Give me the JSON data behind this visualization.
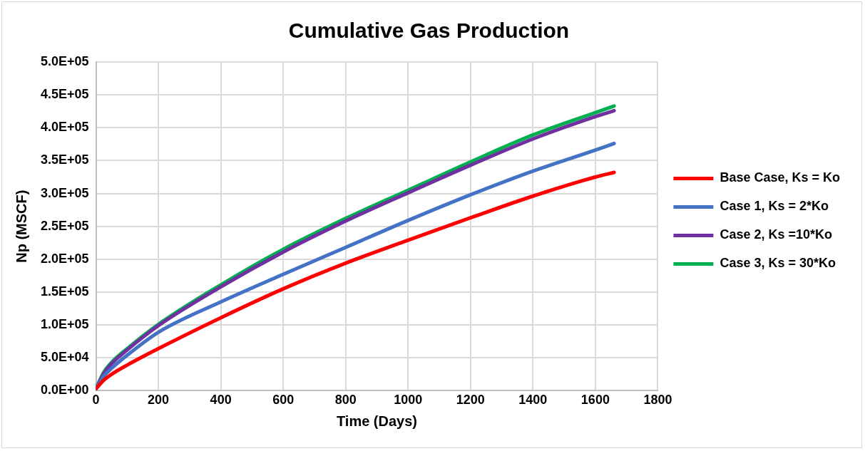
{
  "chart_data": {
    "type": "line",
    "title": "Cumulative Gas Production",
    "xlabel": "Time (Days)",
    "ylabel": "Np (MSCF)",
    "x": [
      0,
      25,
      50,
      100,
      200,
      400,
      600,
      800,
      1000,
      1200,
      1400,
      1600,
      1660
    ],
    "series": [
      {
        "name": "Base Case, Ks = Ko",
        "color": "#ff0000",
        "values": [
          3000,
          16000,
          25000,
          39000,
          64000,
          111000,
          155000,
          194000,
          229000,
          263000,
          296000,
          325000,
          332000
        ]
      },
      {
        "name": "Case 1, Ks = 2*Ko",
        "color": "#4472c4",
        "values": [
          3000,
          22000,
          34000,
          54000,
          89000,
          135000,
          177000,
          218000,
          259000,
          298000,
          334000,
          366000,
          376000
        ]
      },
      {
        "name": "Case 2, Ks =10*Ko",
        "color": "#7030a0",
        "values": [
          3000,
          26000,
          41000,
          62000,
          99000,
          158000,
          211000,
          258000,
          301000,
          343000,
          383000,
          417000,
          426000
        ]
      },
      {
        "name": "Case 3, Ks = 30*Ko",
        "color": "#00b050",
        "values": [
          3000,
          28000,
          43000,
          64000,
          101000,
          161000,
          215000,
          262000,
          305000,
          348000,
          389000,
          423000,
          433000
        ]
      }
    ],
    "xlim": [
      0,
      1800
    ],
    "xticks": [
      0,
      200,
      400,
      600,
      800,
      1000,
      1200,
      1400,
      1600,
      1800
    ],
    "ylim": [
      0,
      500000
    ],
    "yticks": [
      {
        "value": 0,
        "label": "0.0E+00"
      },
      {
        "value": 50000,
        "label": "5.0E+04"
      },
      {
        "value": 100000,
        "label": "1.0E+05"
      },
      {
        "value": 150000,
        "label": "1.5E+05"
      },
      {
        "value": 200000,
        "label": "2.0E+05"
      },
      {
        "value": 250000,
        "label": "2.5E+05"
      },
      {
        "value": 300000,
        "label": "3.0E+05"
      },
      {
        "value": 350000,
        "label": "3.5E+05"
      },
      {
        "value": 400000,
        "label": "4.0E+05"
      },
      {
        "value": 450000,
        "label": "4.5E+05"
      },
      {
        "value": 500000,
        "label": "5.0E+05"
      }
    ],
    "grid": true,
    "legend": "right",
    "marker": "none",
    "line_style": "solid"
  }
}
